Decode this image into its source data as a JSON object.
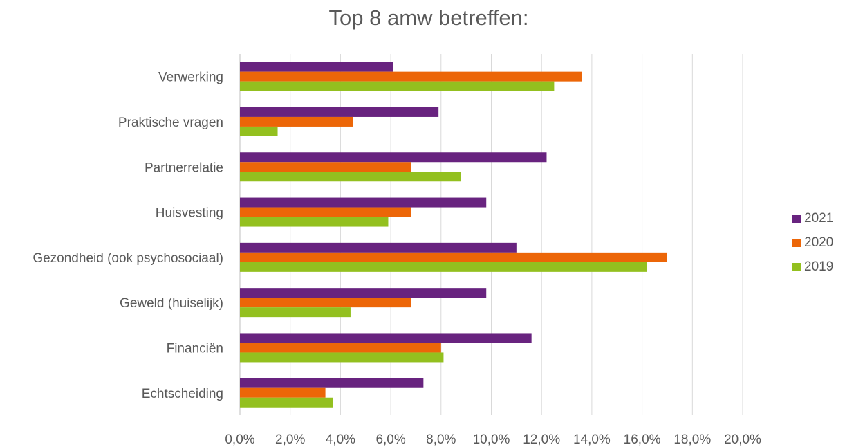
{
  "chart_data": {
    "type": "bar",
    "orientation": "horizontal",
    "title": "Top 8 amw betreffen:",
    "categories": [
      "Verwerking",
      "Praktische vragen",
      "Partnerrelatie",
      "Huisvesting",
      "Gezondheid (ook psychosociaal)",
      "Geweld (huiselijk)",
      "Financiën",
      "Echtscheiding"
    ],
    "series": [
      {
        "name": "2021",
        "color": "#68237f",
        "values": [
          6.1,
          7.9,
          12.2,
          9.8,
          11.0,
          9.8,
          11.6,
          7.3
        ]
      },
      {
        "name": "2020",
        "color": "#ec6608",
        "values": [
          13.6,
          4.5,
          6.8,
          6.8,
          17.0,
          6.8,
          8.0,
          3.4
        ]
      },
      {
        "name": "2019",
        "color": "#93c01f",
        "values": [
          12.5,
          1.5,
          8.8,
          5.9,
          16.2,
          4.4,
          8.1,
          3.7
        ]
      }
    ],
    "xlim": [
      0,
      20
    ],
    "xticks": [
      "0,0%",
      "2,0%",
      "4,0%",
      "6,0%",
      "8,0%",
      "10,0%",
      "12,0%",
      "14,0%",
      "16,0%",
      "18,0%",
      "20,0%"
    ],
    "grid": true,
    "legend_position": "right",
    "legend_order": [
      "2021",
      "2020",
      "2019"
    ]
  }
}
